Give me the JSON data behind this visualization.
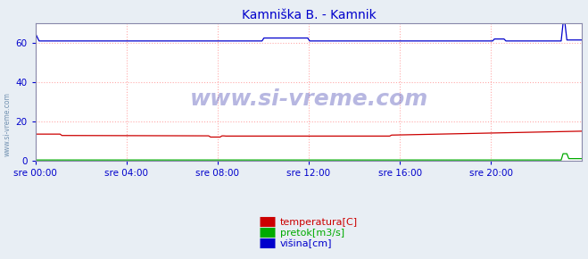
{
  "title": "Kamniška B. - Kamnik",
  "title_color": "#0000cc",
  "bg_color": "#e8eef4",
  "plot_bg_color": "#ffffff",
  "grid_color": "#ffaaaa",
  "grid_style": ":",
  "tick_color": "#0000cc",
  "yticks": [
    0,
    20,
    40,
    60
  ],
  "ylim": [
    0,
    70
  ],
  "n_points": 288,
  "xtick_labels": [
    "sre 00:00",
    "sre 04:00",
    "sre 08:00",
    "sre 12:00",
    "sre 16:00",
    "sre 20:00"
  ],
  "xtick_positions": [
    0.0,
    0.1667,
    0.3333,
    0.5,
    0.6667,
    0.8333
  ],
  "watermark": "www.si-vreme.com",
  "legend_entries": [
    "temperatura[C]",
    "pretok[m3/s]",
    "višina[cm]"
  ],
  "legend_colors": [
    "#cc0000",
    "#00aa00",
    "#0000cc"
  ],
  "spine_color": "#8888aa"
}
